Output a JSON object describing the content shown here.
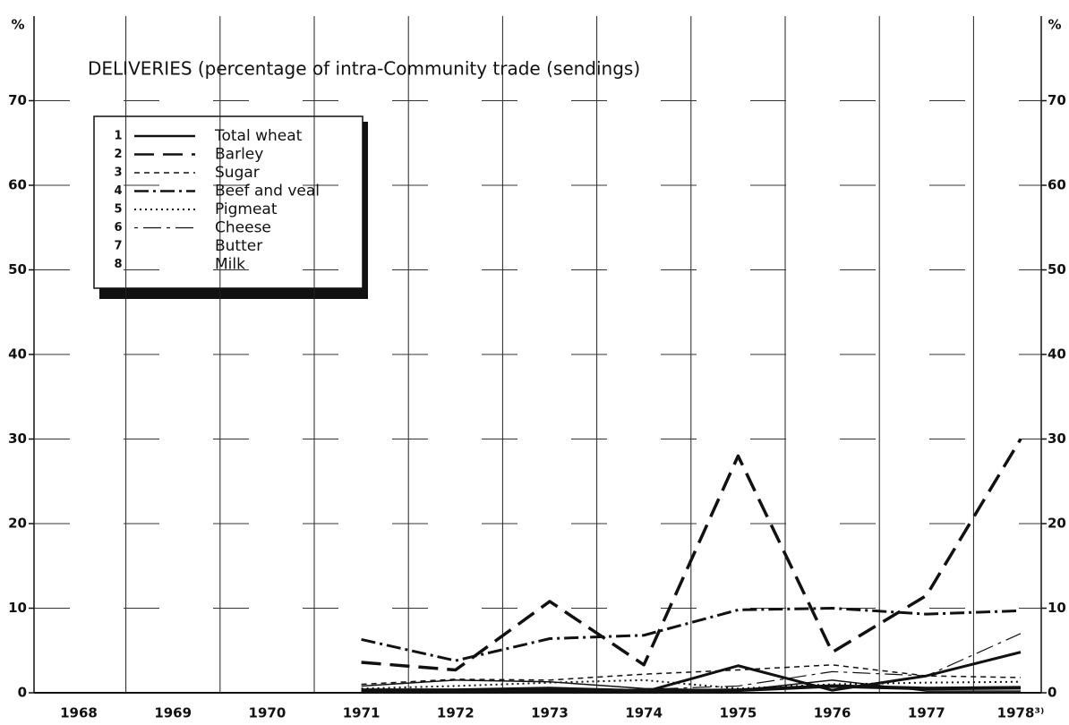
{
  "chart_data": {
    "type": "line",
    "title": "DELIVERIES (percentage of intra-Community trade (sendings)",
    "y_label": "%",
    "y2_label": "%",
    "categories": [
      "1968",
      "1969",
      "1970",
      "1971",
      "1972",
      "1973",
      "1974",
      "1975",
      "1976",
      "1977",
      "1978³⁾"
    ],
    "ylim": [
      0,
      80
    ],
    "yticks": [
      0,
      10,
      20,
      30,
      40,
      50,
      60,
      70
    ],
    "y2lim": [
      0,
      80
    ],
    "y2ticks": [
      0,
      10,
      20,
      30,
      40,
      50,
      60,
      70
    ],
    "grid": true,
    "legend": "upper left",
    "series": [
      {
        "number": "1",
        "name": "Total wheat",
        "color": "#111111",
        "dash": "none",
        "width": 3,
        "values": [
          null,
          null,
          null,
          0.2,
          0.1,
          0.2,
          0.1,
          3.2,
          0.3,
          2.0,
          4.8
        ]
      },
      {
        "number": "2",
        "name": "Barley",
        "color": "#111111",
        "dash": "22 10",
        "width": 3.5,
        "values": [
          null,
          null,
          null,
          3.6,
          2.7,
          10.8,
          3.3,
          28,
          4.8,
          11.5,
          30
        ]
      },
      {
        "number": "3",
        "name": "Sugar",
        "color": "#111111",
        "dash": "6 5",
        "width": 1.5,
        "values": [
          null,
          null,
          null,
          1.0,
          1.6,
          1.5,
          2.2,
          2.7,
          3.3,
          2.0,
          1.8
        ]
      },
      {
        "number": "4",
        "name": "Beef and veal",
        "color": "#111111",
        "dash": "16 5 3 5",
        "width": 3,
        "values": [
          null,
          null,
          null,
          6.3,
          3.8,
          6.4,
          6.8,
          9.8,
          10,
          9.3,
          9.7
        ]
      },
      {
        "number": "5",
        "name": "Pigmeat",
        "color": "#111111",
        "dash": "2 4",
        "width": 2,
        "values": [
          null,
          null,
          null,
          0.5,
          0.8,
          1.2,
          1.5,
          0.5,
          1.0,
          1.2,
          1.3
        ]
      },
      {
        "number": "6",
        "name": "Cheese",
        "color": "#111111",
        "dash": "4 6 20 6",
        "width": 1.2,
        "values": [
          null,
          null,
          null,
          0.3,
          0.4,
          0.5,
          0.4,
          0.8,
          2.5,
          2.0,
          7.0
        ]
      },
      {
        "number": "7",
        "name": "Butter",
        "color": "#111111",
        "dash": "none",
        "width": 1.5,
        "values": [
          null,
          null,
          null,
          0.8,
          1.5,
          1.3,
          0.5,
          0.3,
          1.5,
          0.2,
          0.2
        ]
      },
      {
        "number": "8",
        "name": "Milk",
        "color": "#111111",
        "dash": "none",
        "width": 4,
        "values": [
          null,
          null,
          null,
          0.3,
          0.3,
          0.5,
          0.2,
          0.3,
          0.8,
          0.5,
          0.6
        ]
      }
    ]
  }
}
